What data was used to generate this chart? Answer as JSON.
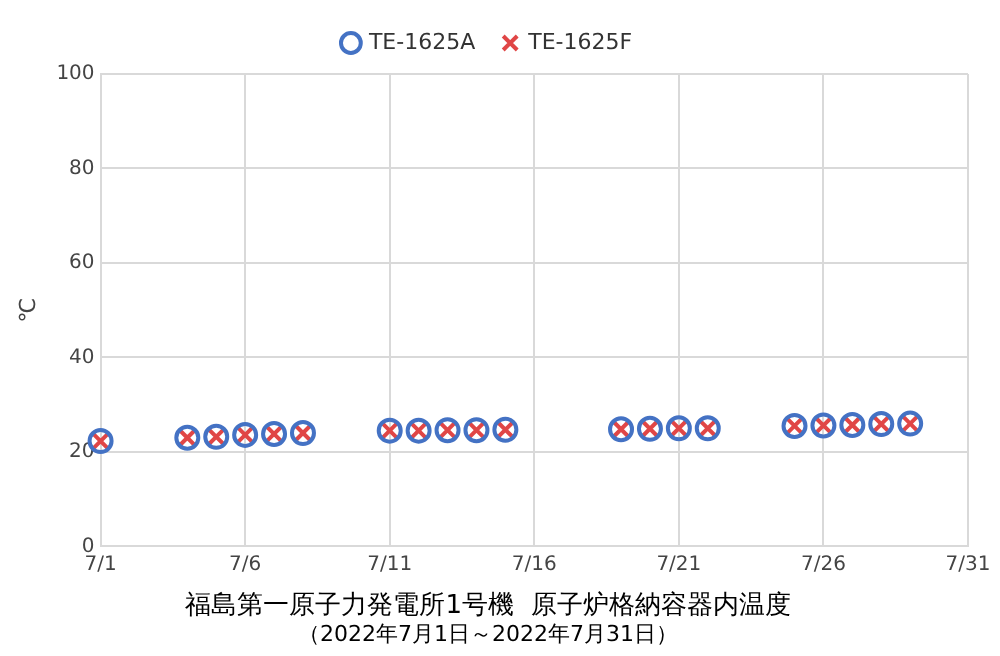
{
  "chart_data": {
    "type": "scatter",
    "title": "福島第一原子力発電所1号機  原子炉格納容器内温度",
    "subtitle": "（2022年7月1日～2022年7月31日）",
    "ylabel": "℃",
    "x": [
      "2022-07-01",
      "2022-07-04",
      "2022-07-05",
      "2022-07-06",
      "2022-07-07",
      "2022-07-08",
      "2022-07-11",
      "2022-07-12",
      "2022-07-13",
      "2022-07-14",
      "2022-07-15",
      "2022-07-19",
      "2022-07-20",
      "2022-07-21",
      "2022-07-22",
      "2022-07-25",
      "2022-07-26",
      "2022-07-27",
      "2022-07-28",
      "2022-07-29"
    ],
    "series": [
      {
        "name": "TE-1625A",
        "color": "#4472c4",
        "marker": "circle",
        "values": [
          22.3,
          23,
          23.2,
          23.6,
          23.8,
          24,
          24.5,
          24.5,
          24.6,
          24.6,
          24.7,
          24.8,
          24.9,
          25,
          25,
          25.5,
          25.6,
          25.7,
          25.9,
          26
        ]
      },
      {
        "name": "TE-1625F",
        "color": "#e04646",
        "marker": "cross",
        "values": [
          22.3,
          23,
          23.2,
          23.6,
          23.8,
          24,
          24.5,
          24.5,
          24.6,
          24.6,
          24.7,
          24.8,
          24.9,
          25,
          25,
          25.5,
          25.6,
          25.7,
          25.9,
          26
        ]
      }
    ],
    "xlim": [
      "2022-07-01",
      "2022-07-31"
    ],
    "xticks": [
      {
        "value": "2022-07-01",
        "label": "7/1"
      },
      {
        "value": "2022-07-06",
        "label": "7/6"
      },
      {
        "value": "2022-07-11",
        "label": "7/11"
      },
      {
        "value": "2022-07-16",
        "label": "7/16"
      },
      {
        "value": "2022-07-21",
        "label": "7/21"
      },
      {
        "value": "2022-07-26",
        "label": "7/26"
      },
      {
        "value": "2022-07-31",
        "label": "7/31"
      }
    ],
    "ylim": [
      0,
      100
    ],
    "yticks": [
      0,
      20,
      40,
      60,
      80,
      100
    ],
    "grid": true,
    "legend": "top"
  }
}
